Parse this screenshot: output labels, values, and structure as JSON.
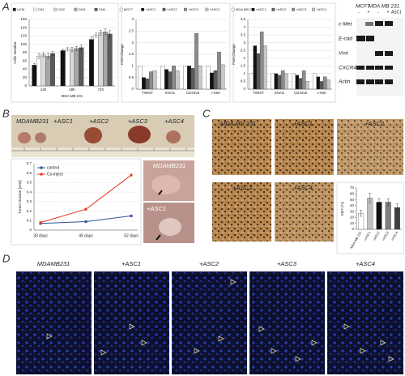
{
  "panels": [
    "A",
    "B",
    "C",
    "D"
  ],
  "blot": {
    "groups": [
      "MCF7",
      "MDA MB 231"
    ],
    "lanes": [
      "-",
      "+",
      "-",
      "+"
    ],
    "extra": "ASC1",
    "rows": [
      "c-Met",
      "E-cad",
      "Vmt",
      "CXCR4",
      "Actin"
    ]
  },
  "tumor_photos": {
    "labels": [
      "MDAMB231",
      "+ASC1",
      "+ASC2",
      "+ASC3",
      "+ASC4"
    ]
  },
  "mouse_photos": {
    "labels": [
      "MDAMB231",
      "+ASC1"
    ]
  },
  "ihc": {
    "labels": [
      "MDA MS 231",
      "+ASC1",
      "+ASC2",
      "+ASC3",
      "+ASC4"
    ]
  },
  "fluorescence": {
    "labels": [
      "MDAMB231",
      "+ASC1",
      "+ASC2",
      "+ASC3",
      "+ASC4"
    ]
  },
  "chart_data": [
    {
      "type": "bar",
      "ylabel": "Cells Number",
      "xlabel": "MDA MB 231",
      "legend": "top",
      "categories": [
        "24h",
        "48h",
        "72h"
      ],
      "ylim": [
        0,
        160
      ],
      "yticks": [
        0,
        20,
        40,
        60,
        80,
        100,
        120,
        140,
        160
      ],
      "grid": true,
      "series": [
        {
          "name": "UCM",
          "color": "#111111",
          "values": [
            50,
            85,
            112
          ],
          "errors": [
            4,
            3,
            6
          ]
        },
        {
          "name": "CM1",
          "color": "#ffffff",
          "values": [
            72,
            88,
            122
          ],
          "errors": [
            6,
            4,
            5
          ]
        },
        {
          "name": "CM2",
          "color": "#d9d9d9",
          "values": [
            75,
            88,
            128
          ],
          "errors": [
            5,
            5,
            6
          ]
        },
        {
          "name": "CM3",
          "color": "#a6a6a6",
          "values": [
            72,
            90,
            130
          ],
          "errors": [
            7,
            5,
            7
          ]
        },
        {
          "name": "CM4",
          "color": "#595959",
          "values": [
            78,
            92,
            125
          ],
          "errors": [
            5,
            6,
            8
          ]
        }
      ]
    },
    {
      "type": "bar",
      "ylabel": "Fold Change",
      "legend": "top",
      "categories": [
        "TWIST",
        "SNAIL",
        "CD44v6",
        "c-Met"
      ],
      "ylim": [
        0,
        3
      ],
      "yticks": [
        0,
        0.5,
        1,
        1.5,
        2,
        2.5,
        3
      ],
      "grid": true,
      "series": [
        {
          "name": "MCF7",
          "color": "#ffffff",
          "values": [
            1,
            1,
            1,
            1
          ]
        },
        {
          "name": "+ASC1",
          "color": "#111111",
          "values": [
            0.5,
            0.85,
            1.0,
            0.7
          ]
        },
        {
          "name": "+ASC2",
          "color": "#595959",
          "values": [
            0.45,
            0.75,
            0.9,
            0.8
          ]
        },
        {
          "name": "+ASC3",
          "color": "#8c8c8c",
          "values": [
            0.75,
            1.0,
            2.4,
            1.6
          ]
        },
        {
          "name": "+ASC4",
          "color": "#c8c8c8",
          "values": [
            0.8,
            0.8,
            1.0,
            1.05
          ]
        }
      ]
    },
    {
      "type": "bar",
      "ylabel": "Fold Change",
      "legend": "top",
      "categories": [
        "TWIST",
        "SNAIL",
        "CD44v6",
        "c-Met"
      ],
      "ylim": [
        0,
        4.5
      ],
      "yticks": [
        0,
        0.5,
        1,
        1.5,
        2,
        2.5,
        3,
        3.5,
        4,
        4.5
      ],
      "grid": true,
      "series": [
        {
          "name": "MDA MB 231",
          "color": "#ffffff",
          "values": [
            1,
            1,
            1,
            1
          ]
        },
        {
          "name": "+ASC1",
          "color": "#111111",
          "values": [
            2.8,
            1.0,
            0.9,
            0.8
          ]
        },
        {
          "name": "+ASC2",
          "color": "#595959",
          "values": [
            2.3,
            0.9,
            0.7,
            0.5
          ]
        },
        {
          "name": "+ASC3",
          "color": "#8c8c8c",
          "values": [
            3.7,
            1.2,
            1.2,
            0.8
          ]
        },
        {
          "name": "+ASC4",
          "color": "#c8c8c8",
          "values": [
            2.8,
            1.0,
            0.5,
            0.6
          ]
        }
      ]
    },
    {
      "type": "line",
      "ylabel": "Tumor Volume [cm3]",
      "legend": "upper left",
      "categories": [
        "30 days",
        "45 days",
        "52 days"
      ],
      "ylim": [
        0,
        0.7
      ],
      "yticks": [
        0,
        0.1,
        0.2,
        0.3,
        0.4,
        0.5,
        0.6,
        0.7
      ],
      "grid": true,
      "series": [
        {
          "name": "control",
          "color": "#2f5597",
          "values": [
            0.07,
            0.09,
            0.15
          ]
        },
        {
          "name": "Co-inject",
          "color": "#e8341c",
          "values": [
            0.08,
            0.22,
            0.58
          ]
        }
      ]
    },
    {
      "type": "bar",
      "ylabel": "Ki67 (%)",
      "categories": [
        "MDA MB 231",
        "+ASC1",
        "+ASC2",
        "+ASC3",
        "+ASC4"
      ],
      "ylim": [
        0,
        70
      ],
      "yticks": [
        0,
        10,
        20,
        30,
        40,
        50,
        60,
        70
      ],
      "grid": false,
      "values": [
        27,
        53,
        46,
        46,
        37
      ],
      "errors": [
        5,
        8,
        6,
        6,
        6
      ],
      "colors": [
        "#ffffff",
        "#bfbfbf",
        "#111111",
        "#7f7f7f",
        "#404040"
      ]
    }
  ]
}
